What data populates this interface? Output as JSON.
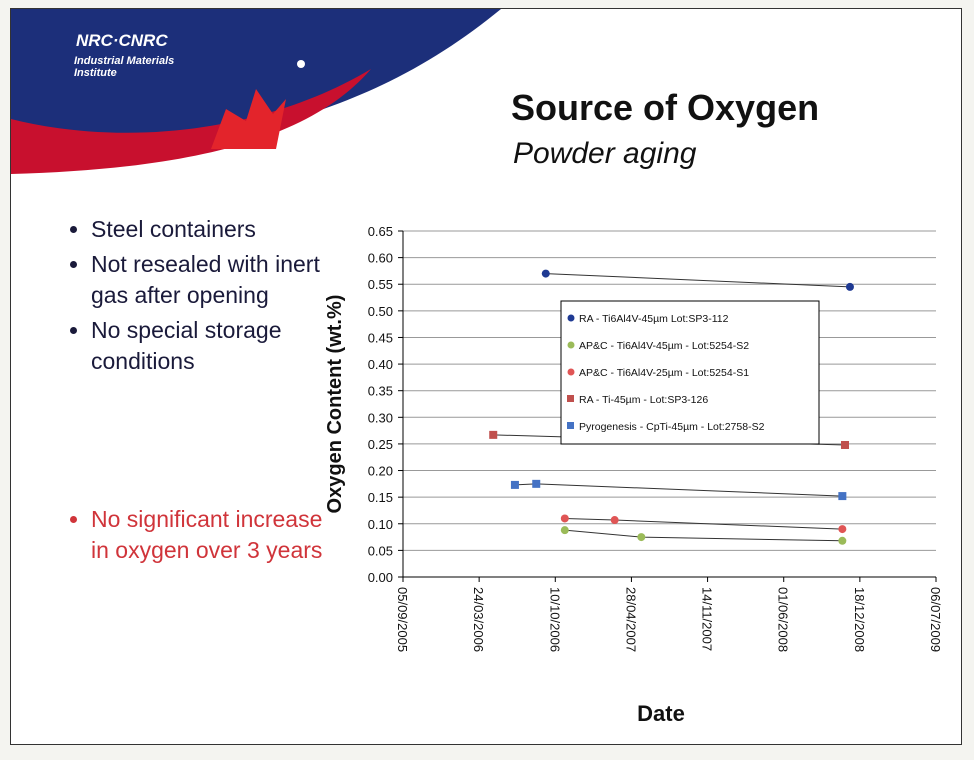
{
  "header": {
    "logo": "NRC·CNRC",
    "institute": "Industrial Materials Institute"
  },
  "title": "Source of Oxygen",
  "subtitle": "Powder aging",
  "bullets": [
    "Steel containers",
    "Not resealed with inert gas after opening",
    "No special storage conditions"
  ],
  "conclusion": "No significant increase in oxygen over 3 years",
  "chart_data": {
    "type": "scatter",
    "xlabel": "Date",
    "ylabel": "Oxygen Content (wt.%)",
    "xlim": [
      "05/09/2005",
      "06/07/2009"
    ],
    "xticks": [
      "05/09/2005",
      "24/03/2006",
      "10/10/2006",
      "28/04/2007",
      "14/11/2007",
      "01/06/2008",
      "18/12/2008",
      "06/07/2009"
    ],
    "ylim": [
      0,
      0.65
    ],
    "yticks": [
      {
        "value": 0,
        "label": "0.00"
      },
      {
        "value": 0.05,
        "label": "0.05"
      },
      {
        "value": 0.1,
        "label": "0.10"
      },
      {
        "value": 0.15,
        "label": "0.15"
      },
      {
        "value": 0.2,
        "label": "0.20"
      },
      {
        "value": 0.25,
        "label": "0.25"
      },
      {
        "value": 0.3,
        "label": "0.30"
      },
      {
        "value": 0.35,
        "label": "0.35"
      },
      {
        "value": 0.4,
        "label": "0.40"
      },
      {
        "value": 0.45,
        "label": "0.45"
      },
      {
        "value": 0.5,
        "label": "0.50"
      },
      {
        "value": 0.55,
        "label": "0.55"
      },
      {
        "value": 0.6,
        "label": "0.60"
      },
      {
        "value": 0.65,
        "label": "0.65"
      }
    ],
    "grid": true,
    "series": [
      {
        "name": "RA - Ti6Al4V-45µm Lot:SP3-112",
        "color": "#1f3a93",
        "marker": "circle",
        "x": [
          "15/09/2006",
          "22/11/2008"
        ],
        "values": [
          0.57,
          0.545
        ]
      },
      {
        "name": "AP&C - Ti6Al4V-45µm - Lot:5254-S2",
        "color": "#9bbb59",
        "marker": "circle",
        "x": [
          "04/11/2006",
          "24/05/2007",
          "02/11/2008"
        ],
        "values": [
          0.088,
          0.075,
          0.068
        ]
      },
      {
        "name": "AP&C - Ti6Al4V-25µm - Lot:5254-S1",
        "color": "#e05555",
        "marker": "circle",
        "x": [
          "04/11/2006",
          "15/03/2007",
          "02/11/2008"
        ],
        "values": [
          0.11,
          0.107,
          0.09
        ]
      },
      {
        "name": "RA - Ti-45µm - Lot:SP3-126",
        "color": "#c0504d",
        "marker": "square",
        "x": [
          "30/04/2006",
          "09/11/2008"
        ],
        "values": [
          0.267,
          0.248
        ]
      },
      {
        "name": "Pyrogenesis - CpTi-45µm - Lot:2758-S2",
        "color": "#4472c4",
        "marker": "square",
        "x": [
          "26/06/2006",
          "21/08/2006",
          "02/11/2008"
        ],
        "values": [
          0.173,
          0.175,
          0.152
        ]
      }
    ]
  }
}
